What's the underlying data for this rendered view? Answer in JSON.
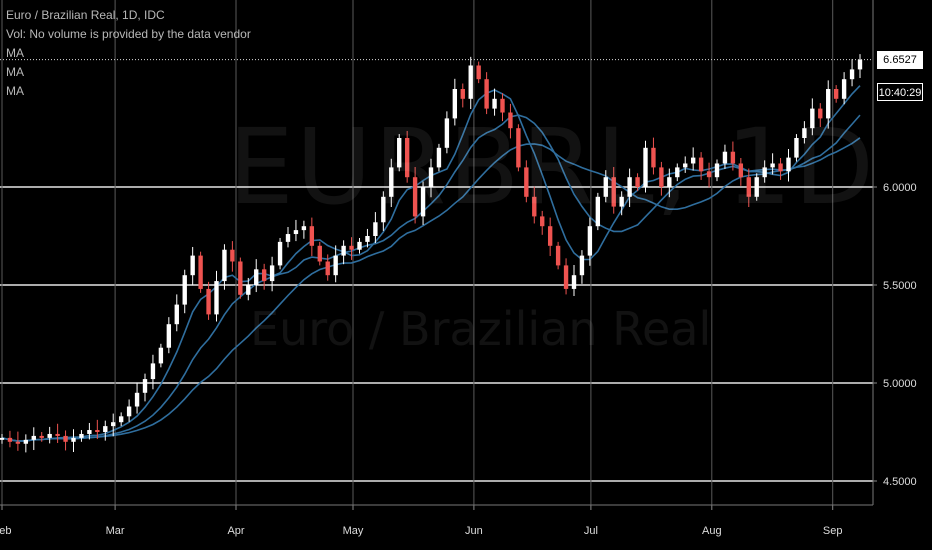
{
  "legend": {
    "symbol": "Euro / Brazilian Real, 1D, IDC",
    "volume": "Vol: No volume is provided by the data vendor",
    "ma_lines": [
      "MA",
      "MA",
      "MA"
    ]
  },
  "watermark": {
    "ticker": "EURBRL, 1D",
    "name": "Euro / Brazilian Real"
  },
  "last_price": "6.6527",
  "countdown": "10:40:29",
  "colors": {
    "background": "#000000",
    "grid": "#ffffff",
    "bull": "#ffffff",
    "bear": "#ef5350",
    "ma": "#2f6e9e",
    "axis_text": "#dddddd"
  },
  "chart_data": {
    "type": "candlestick",
    "title": "Euro / Brazilian Real, 1D, IDC",
    "y_ticks": [
      "4.5000",
      "5.0000",
      "5.5000",
      "6.0000"
    ],
    "ylim": [
      4.4,
      6.9
    ],
    "x_ticks": [
      "Feb",
      "Mar",
      "Apr",
      "May",
      "Jun",
      "Jul",
      "Aug",
      "Sep"
    ],
    "x_tick_days": [
      0,
      29,
      60,
      90,
      121,
      151,
      182,
      213
    ],
    "grid": true,
    "period_days": [
      0,
      220
    ],
    "closes": [
      4.72,
      4.7,
      4.69,
      4.71,
      4.73,
      4.72,
      4.74,
      4.73,
      4.7,
      4.72,
      4.74,
      4.76,
      4.75,
      4.78,
      4.8,
      4.83,
      4.88,
      4.95,
      5.02,
      5.1,
      5.18,
      5.3,
      5.4,
      5.55,
      5.65,
      5.48,
      5.35,
      5.52,
      5.68,
      5.62,
      5.45,
      5.5,
      5.58,
      5.52,
      5.6,
      5.72,
      5.76,
      5.78,
      5.8,
      5.7,
      5.62,
      5.55,
      5.65,
      5.7,
      5.68,
      5.72,
      5.75,
      5.82,
      5.95,
      6.1,
      6.25,
      6.05,
      5.85,
      6.0,
      6.1,
      6.2,
      6.35,
      6.5,
      6.45,
      6.62,
      6.55,
      6.4,
      6.45,
      6.38,
      6.3,
      6.1,
      5.95,
      5.85,
      5.8,
      5.7,
      5.6,
      5.48,
      5.55,
      5.65,
      5.8,
      5.95,
      6.05,
      5.9,
      5.95,
      6.05,
      6.0,
      6.2,
      6.1,
      6.0,
      6.05,
      6.1,
      6.12,
      6.15,
      6.08,
      6.05,
      6.12,
      6.18,
      6.12,
      6.05,
      5.95,
      6.05,
      6.1,
      6.12,
      6.08,
      6.15,
      6.25,
      6.3,
      6.4,
      6.35,
      6.5,
      6.45,
      6.55,
      6.6,
      6.65
    ]
  }
}
